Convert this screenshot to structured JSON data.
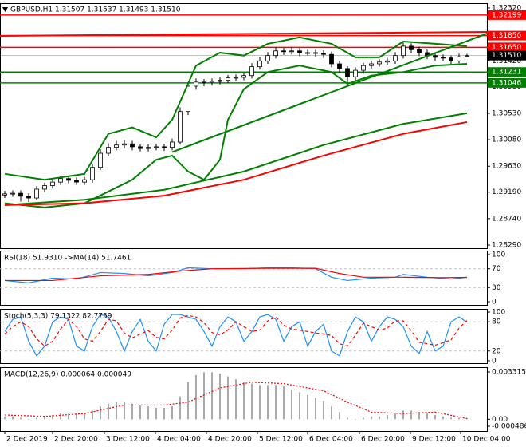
{
  "chart_data": [
    {
      "type": "candlestick",
      "title": "GBPUSD,H1 1.31507 1.31537 1.31493 1.31510",
      "xlim": [
        -0.6,
        60.6
      ],
      "xticks": [
        {
          "value": 0,
          "label": "2 Dec 2019"
        },
        {
          "value": 6,
          "label": "2 Dec 20:00"
        },
        {
          "value": 12.5,
          "label": "3 Dec 12:00"
        },
        {
          "value": 18.9,
          "label": "4 Dec 04:00"
        },
        {
          "value": 25.3,
          "label": "4 Dec 20:00"
        },
        {
          "value": 31.7,
          "label": "5 Dec 12:00"
        },
        {
          "value": 38,
          "label": "6 Dec 04:00"
        },
        {
          "value": 44.5,
          "label": "6 Dec 20:00"
        },
        {
          "value": 50.9,
          "label": "9 Dec 12:00"
        },
        {
          "value": 57.2,
          "label": "10 Dec 04:00"
        }
      ],
      "ylim": [
        1.28222,
        1.32401
      ],
      "yticks": [
        {
          "value": 1.3232,
          "label": "1.32320"
        },
        {
          "value": 1.3142,
          "label": "1.31420"
        },
        {
          "value": 1.3098,
          "label": "1.30980"
        },
        {
          "value": 1.3053,
          "label": "1.30530"
        },
        {
          "value": 1.3008,
          "label": "1.30080"
        },
        {
          "value": 1.2963,
          "label": "1.29630"
        },
        {
          "value": 1.2919,
          "label": "1.29190"
        },
        {
          "value": 1.2874,
          "label": "1.28740"
        },
        {
          "value": 1.2829,
          "label": "1.28290"
        }
      ],
      "open": [
        1.2914,
        1.2916,
        1.2917,
        1.2912,
        1.2909,
        1.2924,
        1.293,
        1.2936,
        1.2942,
        1.2939,
        1.2936,
        1.294,
        1.2961,
        1.2985,
        1.2995,
        1.2999,
        1.3001,
        1.2996,
        1.2993,
        1.2995,
        1.2996,
        1.2995,
        1.3004,
        1.3056,
        1.3099,
        1.3106,
        1.3105,
        1.3107,
        1.3109,
        1.3113,
        1.3114,
        1.3117,
        1.3132,
        1.3142,
        1.3151,
        1.3159,
        1.3158,
        1.3159,
        1.3156,
        1.3156,
        1.3155,
        1.3153,
        1.3137,
        1.3129,
        1.3115,
        1.3126,
        1.3134,
        1.3137,
        1.314,
        1.3142,
        1.3151,
        1.3167,
        1.3161,
        1.3156,
        1.3151,
        1.3148,
        1.3147,
        1.3142,
        1.31507
      ],
      "high": [
        1.2921,
        1.2922,
        1.2922,
        1.2917,
        1.2929,
        1.2935,
        1.2941,
        1.2947,
        1.2947,
        1.2944,
        1.2945,
        1.2966,
        1.2992,
        1.3002,
        1.3006,
        1.3007,
        1.3006,
        1.3,
        1.3,
        1.3001,
        1.3001,
        1.301,
        1.3063,
        1.3106,
        1.3112,
        1.3111,
        1.3112,
        1.3114,
        1.3118,
        1.3119,
        1.3122,
        1.3138,
        1.3148,
        1.3157,
        1.3165,
        1.3164,
        1.3165,
        1.3164,
        1.3161,
        1.3161,
        1.316,
        1.3158,
        1.3142,
        1.3133,
        1.3131,
        1.3139,
        1.3142,
        1.3145,
        1.3147,
        1.3157,
        1.3173,
        1.3172,
        1.3166,
        1.3161,
        1.3156,
        1.3153,
        1.3151,
        1.3154,
        1.31537
      ],
      "low": [
        1.2909,
        1.2911,
        1.2903,
        1.2902,
        1.2905,
        1.2919,
        1.2925,
        1.2931,
        1.2934,
        1.2931,
        1.2931,
        1.2935,
        1.2956,
        1.298,
        1.299,
        1.2993,
        1.299,
        1.2988,
        1.2988,
        1.299,
        1.2989,
        1.299,
        1.3,
        1.305,
        1.3093,
        1.3099,
        1.31,
        1.3102,
        1.3104,
        1.3108,
        1.3109,
        1.3112,
        1.3127,
        1.3137,
        1.3146,
        1.3152,
        1.3153,
        1.315,
        1.3151,
        1.3149,
        1.3147,
        1.3131,
        1.3122,
        1.3105,
        1.3109,
        1.312,
        1.3129,
        1.3132,
        1.3135,
        1.3137,
        1.3146,
        1.3155,
        1.315,
        1.3145,
        1.3142,
        1.3141,
        1.3137,
        1.3138,
        1.31493
      ],
      "close": [
        1.2916,
        1.2917,
        1.2912,
        1.2909,
        1.2924,
        1.293,
        1.2936,
        1.2942,
        1.2939,
        1.2936,
        1.294,
        1.2961,
        1.2985,
        1.2995,
        1.2999,
        1.3001,
        1.2996,
        1.2993,
        1.2995,
        1.2996,
        1.2995,
        1.3004,
        1.3056,
        1.3099,
        1.3106,
        1.3105,
        1.3107,
        1.3109,
        1.3113,
        1.3114,
        1.3117,
        1.3132,
        1.3142,
        1.3151,
        1.3159,
        1.3158,
        1.3159,
        1.3156,
        1.3156,
        1.3155,
        1.3153,
        1.3137,
        1.3129,
        1.3115,
        1.3126,
        1.3134,
        1.3137,
        1.314,
        1.3142,
        1.3151,
        1.3167,
        1.3161,
        1.3156,
        1.3151,
        1.3148,
        1.3147,
        1.3142,
        1.3149,
        1.3151
      ],
      "up_color": "#ffffff",
      "down_color": "#000000",
      "levels": [
        {
          "value": 1.32199,
          "label": "1.32199",
          "color": "#ff0000"
        },
        {
          "value": 1.3185,
          "label": "1.31850",
          "color": "#ff0000"
        },
        {
          "value": 1.3165,
          "label": "1.31650",
          "color": "#ff0000"
        },
        {
          "value": 1.3151,
          "label": "1.31510",
          "color": "#000000"
        },
        {
          "value": 1.31231,
          "label": "1.31231",
          "color": "#008000"
        },
        {
          "value": 1.31046,
          "label": "1.31046",
          "color": "#008000"
        }
      ],
      "series": [
        {
          "color": "#008000",
          "x": [
            0,
            5,
            10,
            13,
            16,
            19,
            21,
            24,
            27,
            30,
            33,
            37,
            41,
            44,
            47,
            50,
            54,
            58
          ],
          "values": [
            1.295,
            1.294,
            1.295,
            1.3018,
            1.3029,
            1.3012,
            1.3042,
            1.3134,
            1.3156,
            1.3151,
            1.3171,
            1.3182,
            1.3171,
            1.3148,
            1.3148,
            1.3175,
            1.3171,
            1.3167
          ]
        },
        {
          "color": "#008000",
          "x": [
            0,
            5,
            10,
            13,
            16,
            19,
            21,
            23,
            25,
            27,
            28,
            30,
            33,
            37,
            41,
            43,
            46,
            50,
            54,
            58
          ],
          "values": [
            1.29,
            1.2893,
            1.29,
            1.292,
            1.294,
            1.2974,
            1.2981,
            1.2954,
            1.294,
            1.2974,
            1.3042,
            1.3094,
            1.3123,
            1.3134,
            1.3123,
            1.3103,
            1.3117,
            1.3123,
            1.3134,
            1.3137
          ]
        },
        {
          "color": "#008000",
          "x": [
            0,
            10,
            20,
            30,
            40,
            50,
            58
          ],
          "values": [
            1.2897,
            1.2906,
            1.2923,
            1.2954,
            1.2999,
            1.3035,
            1.3053
          ]
        },
        {
          "color": "#ff0000",
          "x": [
            0,
            10,
            20,
            30,
            40,
            50,
            58
          ],
          "values": [
            1.2897,
            1.29,
            1.2913,
            1.294,
            1.2981,
            1.3018,
            1.3038
          ]
        },
        {
          "color": "#008000",
          "x": [
            21,
            60.6
          ],
          "values": [
            1.2987,
            1.3189
          ]
        },
        {
          "color": "#ff0000",
          "x": [
            -0.6,
            60.6
          ],
          "values": [
            1.31845,
            1.31913
          ]
        }
      ]
    },
    {
      "type": "line",
      "title": "RSI(18) 51.9310 ->MA(14) 51.7461",
      "ylim": [
        -8.5,
        108.5
      ],
      "yticks": [
        100,
        70,
        30,
        0
      ],
      "levels": [
        70,
        30
      ],
      "series": [
        {
          "color": "#1e90ff",
          "x": [
            0,
            3,
            6,
            9,
            12,
            15,
            18,
            21,
            23,
            26,
            30,
            33,
            36,
            39,
            41,
            43,
            46,
            49,
            50,
            53,
            56,
            58
          ],
          "values": [
            45,
            40,
            50,
            48,
            62,
            60,
            55,
            62,
            72,
            70,
            70,
            72,
            72,
            70,
            52,
            45,
            50,
            52,
            58,
            52,
            48,
            51.931
          ]
        },
        {
          "color": "#ff0000",
          "x": [
            0,
            6,
            12,
            18,
            22,
            26,
            33,
            39,
            42,
            45,
            50,
            55,
            58
          ],
          "values": [
            45,
            45,
            55,
            58,
            65,
            70,
            71,
            71,
            60,
            52,
            52,
            51,
            51.7461
          ]
        }
      ]
    },
    {
      "type": "line",
      "title": "Stoch(5,3,3) 79.1322 82.7759",
      "ylim": [
        -6.6,
        106.6
      ],
      "yticks": [
        100,
        80,
        20,
        0
      ],
      "levels": [
        80,
        20
      ],
      "series": [
        {
          "color": "#1e90ff",
          "values": [
            60,
            85,
            90,
            40,
            10,
            30,
            80,
            90,
            85,
            30,
            20,
            70,
            95,
            90,
            60,
            20,
            60,
            85,
            40,
            20,
            75,
            95,
            95,
            90,
            85,
            60,
            30,
            70,
            90,
            80,
            40,
            60,
            90,
            95,
            85,
            40,
            70,
            80,
            30,
            60,
            75,
            20,
            10,
            60,
            90,
            80,
            40,
            70,
            90,
            85,
            70,
            30,
            15,
            60,
            20,
            30,
            80,
            90,
            79.1322
          ]
        },
        {
          "color": "#ff0000",
          "style": "dashed",
          "values": [
            55,
            70,
            80,
            70,
            45,
            30,
            40,
            65,
            85,
            70,
            45,
            40,
            60,
            85,
            82,
            57,
            47,
            55,
            62,
            48,
            45,
            63,
            88,
            93,
            90,
            78,
            58,
            53,
            63,
            80,
            70,
            60,
            63,
            82,
            90,
            73,
            65,
            63,
            60,
            57,
            55,
            52,
            35,
            30,
            53,
            77,
            70,
            63,
            67,
            82,
            82,
            62,
            38,
            35,
            32,
            37,
            43,
            67,
            82.7759
          ]
        }
      ]
    },
    {
      "type": "bar",
      "title": "MACD(12,26,9) 0.000064 0.000049",
      "ylim": [
        -0.000877,
        0.00365
      ],
      "yticks": [
        0.003315,
        {
          "value": 0,
          "label": "0.00"
        },
        -0.000486
      ],
      "series": [
        {
          "type": "bar",
          "color": "#a9a9a9",
          "values": [
            0.0002,
            0.0002,
            0.0001,
            0,
            0.0001,
            0.0002,
            0.0003,
            0.0004,
            0.0004,
            0.0004,
            0.0004,
            0.0006,
            0.0009,
            0.0011,
            0.0012,
            0.0012,
            0.0011,
            0.001,
            0.0009,
            0.0008,
            0.0008,
            0.0009,
            0.0016,
            0.0026,
            0.0031,
            0.0033,
            0.0033,
            0.0032,
            0.003,
            0.0028,
            0.0026,
            0.0025,
            0.0024,
            0.0024,
            0.0024,
            0.0023,
            0.0021,
            0.0019,
            0.0017,
            0.0015,
            0.0013,
            0.0009,
            0.0005,
            0.0001,
            0,
            0.0001,
            0.0002,
            0.0002,
            0.0003,
            0.0004,
            0.0006,
            0.0006,
            0.0005,
            0.0004,
            0.0003,
            0.0002,
            0.0001,
            0.0001,
            6.4e-05
          ]
        },
        {
          "type": "line",
          "color": "#ff0000",
          "style": "dotted",
          "x": [
            0,
            5,
            10,
            15,
            20,
            23,
            27,
            31,
            35,
            40,
            43,
            46,
            50,
            54,
            58
          ],
          "values": [
            0.0003,
            0.0002,
            0.0004,
            0.001,
            0.001,
            0.0012,
            0.0022,
            0.0026,
            0.0025,
            0.002,
            0.0012,
            0.0005,
            0.0004,
            0.0005,
            4.9e-05
          ]
        }
      ]
    }
  ]
}
